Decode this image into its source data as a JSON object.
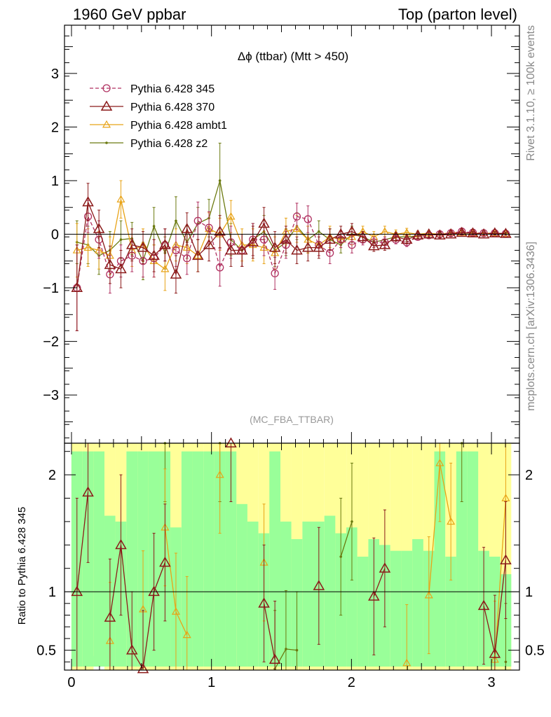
{
  "header": {
    "left": "1960 GeV ppbar",
    "right": "Top (parton level)"
  },
  "side_text": {
    "rivet": "Rivet 3.1.10, ≥ 100k events",
    "mcplots": "mcplots.cern.ch [arXiv:1306.3436]"
  },
  "chart_data": [
    {
      "type": "line",
      "title": "Δϕ (ttbar) (Mtt > 450)",
      "watermark": "(MC_FBA_TTBAR)",
      "xlim": [
        -0.05,
        3.2
      ],
      "ylim": [
        -3.9,
        3.9
      ],
      "yticks": [
        -3,
        -2,
        -1,
        0,
        1,
        2,
        3
      ],
      "ytick_labels": [
        "−3",
        "−2",
        "−1",
        "0",
        "1",
        "2",
        "3"
      ],
      "legend_position": "top-left",
      "x": [
        0.039,
        0.118,
        0.196,
        0.275,
        0.353,
        0.432,
        0.511,
        0.589,
        0.668,
        0.746,
        0.825,
        0.903,
        0.982,
        1.06,
        1.139,
        1.218,
        1.296,
        1.375,
        1.453,
        1.532,
        1.61,
        1.689,
        1.767,
        1.846,
        1.924,
        2.003,
        2.081,
        2.16,
        2.238,
        2.317,
        2.395,
        2.474,
        2.553,
        2.631,
        2.71,
        2.788,
        2.867,
        2.945,
        3.024,
        3.102
      ],
      "series": [
        {
          "name": "Pythia 6.428 345",
          "color": "#b03060",
          "dashed": true,
          "marker": "circle",
          "y": [
            -1.0,
            0.33,
            -0.1,
            -0.75,
            -0.5,
            -0.4,
            -0.5,
            -0.45,
            -0.2,
            -0.3,
            -0.45,
            0.25,
            0.12,
            -0.62,
            -0.15,
            -0.3,
            -0.1,
            -0.1,
            -0.73,
            -0.2,
            0.33,
            0.28,
            -0.2,
            -0.35,
            -0.1,
            -0.2,
            -0.1,
            -0.15,
            -0.15,
            -0.1,
            -0.15,
            -0.05,
            -0.02,
            0.0,
            0.02,
            0.05,
            0.03,
            0.02,
            0.02,
            0.01
          ],
          "err": [
            0.8,
            0.3,
            0.35,
            0.35,
            0.3,
            0.3,
            0.3,
            0.35,
            0.3,
            0.3,
            0.3,
            0.35,
            0.3,
            0.35,
            0.3,
            0.3,
            0.3,
            0.3,
            0.3,
            0.25,
            0.25,
            0.25,
            0.2,
            0.2,
            0.15,
            0.15,
            0.1,
            0.1,
            0.1,
            0.08,
            0.08,
            0.06,
            0.05,
            0.05,
            0.04,
            0.04,
            0.03,
            0.03,
            0.03,
            0.03
          ]
        },
        {
          "name": "Pythia 6.428 370",
          "color": "#8b1a1a",
          "dashed": false,
          "marker": "triangle",
          "y": [
            -1.0,
            0.6,
            0.1,
            -0.57,
            -0.65,
            -0.2,
            -0.25,
            -0.4,
            -0.2,
            -0.75,
            0.1,
            -0.4,
            -0.2,
            0.05,
            -0.3,
            -0.3,
            -0.15,
            0.2,
            -0.25,
            -0.1,
            -0.3,
            -0.25,
            -0.25,
            -0.1,
            0.0,
            0.05,
            -0.05,
            -0.22,
            -0.2,
            -0.05,
            -0.1,
            -0.02,
            0.0,
            -0.02,
            0.0,
            0.03,
            0.02,
            0.0,
            0.02,
            0.01
          ],
          "err": [
            0.8,
            0.35,
            0.35,
            0.35,
            0.35,
            0.3,
            0.3,
            0.3,
            0.3,
            0.35,
            0.3,
            0.3,
            0.3,
            0.3,
            0.3,
            0.3,
            0.3,
            0.3,
            0.3,
            0.25,
            0.25,
            0.25,
            0.2,
            0.2,
            0.15,
            0.15,
            0.1,
            0.1,
            0.1,
            0.08,
            0.08,
            0.06,
            0.05,
            0.05,
            0.04,
            0.04,
            0.03,
            0.03,
            0.03,
            0.03
          ]
        },
        {
          "name": "Pythia 6.428 ambt1",
          "color": "#e8a317",
          "dashed": false,
          "marker": "triangle-small",
          "y": [
            -0.3,
            -0.25,
            -0.3,
            -0.4,
            0.65,
            -0.3,
            -0.2,
            -0.5,
            -0.65,
            -0.2,
            -0.25,
            -0.4,
            0.1,
            0.0,
            0.33,
            -0.2,
            -0.2,
            -0.25,
            -0.35,
            0.05,
            0.1,
            -0.1,
            -0.2,
            -0.05,
            -0.1,
            -0.05,
            0.05,
            -0.05,
            0.05,
            0.0,
            0.03,
            0.0,
            0.02,
            0.0,
            0.03,
            0.03,
            0.02,
            0.02,
            0.02,
            0.01
          ],
          "err": [
            0.5,
            0.35,
            0.35,
            0.35,
            0.35,
            0.3,
            0.3,
            0.3,
            0.4,
            0.3,
            0.3,
            0.3,
            0.3,
            0.3,
            0.3,
            0.3,
            0.3,
            0.3,
            0.3,
            0.25,
            0.25,
            0.25,
            0.2,
            0.2,
            0.15,
            0.15,
            0.1,
            0.1,
            0.1,
            0.08,
            0.08,
            0.06,
            0.05,
            0.05,
            0.04,
            0.04,
            0.03,
            0.03,
            0.03,
            0.03
          ]
        },
        {
          "name": "Pythia 6.428 z2",
          "color": "#6b7a10",
          "dashed": false,
          "marker": "dot",
          "y": [
            -0.15,
            -0.2,
            -0.4,
            -0.3,
            -0.1,
            -0.08,
            -0.5,
            0.15,
            -0.35,
            0.25,
            -0.15,
            0.2,
            0.3,
            1.0,
            -0.1,
            -0.3,
            -0.1,
            0.05,
            -0.3,
            -0.15,
            0.15,
            -0.1,
            0.05,
            -0.1,
            -0.2,
            0.0,
            -0.05,
            -0.15,
            -0.1,
            -0.05,
            -0.05,
            -0.03,
            0.0,
            0.0,
            0.02,
            0.02,
            0.02,
            0.0,
            0.01,
            0.01
          ],
          "err": [
            0.4,
            0.35,
            0.35,
            0.35,
            0.35,
            0.3,
            0.35,
            0.35,
            0.3,
            0.45,
            0.3,
            0.3,
            0.35,
            0.7,
            0.3,
            0.3,
            0.3,
            0.3,
            0.3,
            0.25,
            0.25,
            0.25,
            0.2,
            0.2,
            0.15,
            0.15,
            0.1,
            0.1,
            0.1,
            0.08,
            0.08,
            0.06,
            0.05,
            0.05,
            0.04,
            0.04,
            0.03,
            0.03,
            0.03,
            0.03
          ]
        }
      ]
    },
    {
      "type": "line",
      "ylabel": "Ratio to Pythia 6.428 345",
      "xlim": [
        -0.05,
        3.2
      ],
      "ylim": [
        0.33,
        2.27
      ],
      "xticks": [
        0,
        1,
        2,
        3
      ],
      "yticks": [
        0.5,
        1,
        2
      ],
      "reference_line": 1,
      "band_inner_color": "#99ff99",
      "band_outer_color": "#ffff99",
      "x": [
        0.039,
        0.118,
        0.196,
        0.275,
        0.353,
        0.432,
        0.511,
        0.589,
        0.668,
        0.746,
        0.825,
        0.903,
        0.982,
        1.06,
        1.139,
        1.218,
        1.296,
        1.375,
        1.453,
        1.532,
        1.61,
        1.689,
        1.767,
        1.846,
        1.924,
        2.003,
        2.081,
        2.16,
        2.238,
        2.317,
        2.395,
        2.474,
        2.553,
        2.631,
        2.71,
        2.788,
        2.867,
        2.945,
        3.024,
        3.102
      ],
      "band_inner": [
        2.2,
        2.2,
        2.2,
        1.65,
        1.6,
        2.2,
        2.2,
        2.2,
        2.2,
        1.55,
        2.2,
        2.2,
        2.2,
        2.2,
        2.2,
        1.75,
        1.6,
        1.5,
        2.2,
        1.6,
        1.45,
        1.6,
        1.6,
        1.65,
        1.5,
        1.55,
        1.3,
        1.45,
        1.4,
        1.35,
        1.35,
        1.45,
        1.35,
        2.2,
        1.3,
        2.2,
        2.2,
        1.35,
        1.3,
        1.15
      ],
      "band_outer": [
        2.27,
        2.27,
        2.27,
        2.27,
        2.27,
        2.27,
        2.27,
        2.27,
        2.27,
        2.27,
        2.27,
        2.27,
        2.27,
        2.27,
        2.27,
        2.27,
        2.27,
        2.27,
        2.27,
        2.27,
        2.27,
        2.27,
        2.27,
        2.27,
        2.27,
        2.27,
        2.27,
        2.27,
        2.27,
        2.27,
        2.27,
        2.27,
        2.27,
        2.27,
        2.27,
        2.27,
        2.27,
        2.27,
        2.27,
        2.27
      ],
      "band_outer_low": [
        0.33,
        0.33,
        0.45,
        0.33,
        0.33,
        0.33,
        0.33,
        0.33,
        0.33,
        0.33,
        0.33,
        0.33,
        0.33,
        0.33,
        0.33,
        0.33,
        0.33,
        0.33,
        0.33,
        0.33,
        0.33,
        0.33,
        0.33,
        0.33,
        0.33,
        0.33,
        0.33,
        0.33,
        0.33,
        0.33,
        0.33,
        0.33,
        0.33,
        0.33,
        0.33,
        0.33,
        0.33,
        0.33,
        0.33,
        0.33
      ],
      "series": [
        {
          "name": "Pythia 6.428 370",
          "color": "#8b1a1a",
          "marker": "triangle",
          "y": [
            1.0,
            1.85,
            null,
            0.78,
            1.4,
            0.5,
            0.34,
            1.0,
            1.25,
            null,
            null,
            null,
            null,
            null,
            2.27,
            null,
            null,
            0.9,
            0.42,
            null,
            null,
            null,
            1.05,
            null,
            null,
            null,
            null,
            0.96,
            1.2,
            null,
            null,
            null,
            null,
            null,
            null,
            null,
            null,
            0.88,
            0.47,
            1.27
          ],
          "err": [
            0.8,
            0.6,
            0.5,
            0.5,
            0.6,
            0.5,
            0.5,
            0.5,
            0.5,
            0.5,
            0.5,
            0.5,
            0.5,
            0.5,
            0.5,
            0.5,
            0.5,
            0.5,
            0.5,
            0.5,
            0.5,
            0.5,
            0.5,
            0.5,
            0.5,
            0.5,
            0.5,
            0.5,
            0.5,
            0.5,
            0.5,
            0.5,
            0.5,
            0.5,
            0.5,
            0.5,
            0.5,
            0.5,
            0.5,
            0.5
          ]
        },
        {
          "name": "Pythia 6.428 ambt1",
          "color": "#e8a317",
          "marker": "triangle-small",
          "y": [
            null,
            null,
            null,
            0.58,
            null,
            null,
            0.85,
            null,
            1.55,
            0.83,
            0.63,
            null,
            null,
            2.0,
            null,
            null,
            null,
            1.25,
            null,
            null,
            null,
            null,
            null,
            null,
            null,
            null,
            null,
            null,
            null,
            null,
            0.39,
            null,
            0.97,
            2.1,
            1.6,
            null,
            null,
            null,
            0.42,
            1.8
          ],
          "err": [
            0.5,
            0.5,
            0.5,
            0.5,
            0.5,
            0.5,
            0.5,
            0.5,
            0.5,
            0.5,
            0.5,
            0.5,
            0.5,
            0.5,
            0.5,
            0.5,
            0.5,
            0.5,
            0.5,
            0.5,
            0.5,
            0.5,
            0.5,
            0.5,
            0.5,
            0.5,
            0.5,
            0.5,
            0.5,
            0.5,
            0.5,
            0.5,
            0.5,
            0.5,
            0.5,
            0.5,
            0.5,
            0.5,
            0.5,
            0.5
          ]
        },
        {
          "name": "Pythia 6.428 z2",
          "color": "#6b7a10",
          "marker": "dot",
          "y": [
            null,
            null,
            null,
            null,
            null,
            null,
            null,
            null,
            2.27,
            null,
            null,
            null,
            null,
            2.27,
            null,
            null,
            null,
            null,
            0.34,
            0.51,
            0.5,
            null,
            null,
            null,
            1.3,
            1.6,
            null,
            null,
            null,
            null,
            null,
            null,
            null,
            null,
            null,
            2.27,
            null,
            null,
            null,
            0.4
          ],
          "err": [
            0.5,
            0.5,
            0.5,
            0.5,
            0.5,
            0.5,
            0.5,
            0.5,
            0.5,
            0.5,
            0.5,
            0.5,
            0.5,
            0.5,
            0.5,
            0.5,
            0.5,
            0.5,
            0.5,
            0.5,
            0.5,
            0.5,
            0.5,
            0.5,
            0.5,
            0.5,
            0.5,
            0.5,
            0.5,
            0.5,
            0.5,
            0.5,
            0.5,
            0.5,
            0.5,
            0.5,
            0.5,
            0.5,
            0.5,
            0.5
          ]
        }
      ]
    }
  ]
}
